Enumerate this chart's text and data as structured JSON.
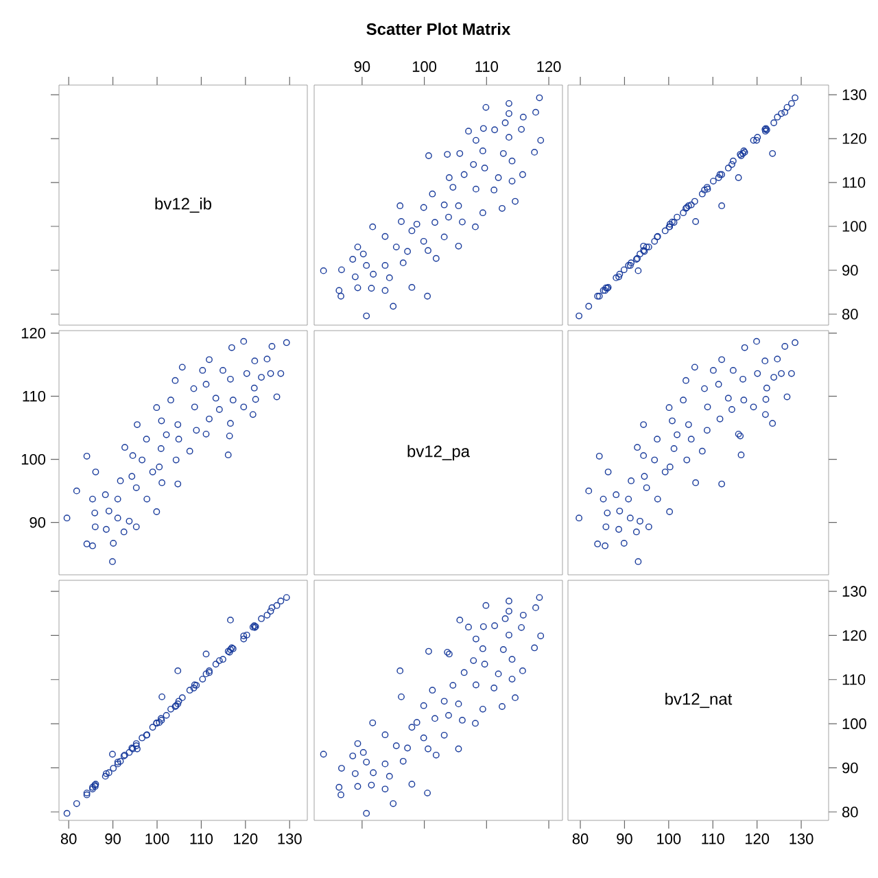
{
  "chart_data": [
    {
      "type": "scatter",
      "annotations": [
        "bv12_ib"
      ],
      "xlim": [
        77.8,
        134
      ],
      "xticks": [
        80,
        90,
        100,
        110,
        120,
        130
      ],
      "ylim": [
        77.5,
        132.2
      ],
      "yticks": [
        80,
        90,
        100,
        110,
        120,
        130
      ],
      "tick_labels": false
    },
    {
      "type": "scatter",
      "title": "Scatter Plot Matrix",
      "color": "#1a3c9c",
      "marker": "circle",
      "xlim": [
        82.3,
        122.2
      ],
      "xticks": [
        90,
        100,
        110,
        120
      ],
      "ylim": [
        77.5,
        132.2
      ],
      "tick_labels": "x",
      "x": [
        118.5,
        113.6,
        109.9,
        113.6,
        117.9,
        115.9,
        113.0,
        109.5,
        107.1,
        111.3,
        115.6,
        118.7,
        113.6,
        108.3,
        100.7,
        103.7,
        105.7,
        109.4,
        112.7,
        117.7,
        107.9,
        114.1,
        109.7,
        104.0,
        106.4,
        111.9,
        115.8,
        114.1,
        101.3,
        104.6,
        108.3,
        111.2,
        114.6,
        96.1,
        99.9,
        103.2,
        105.5,
        109.4,
        112.5,
        91.7,
        96.3,
        98.8,
        101.7,
        103.9,
        106.1,
        108.2,
        93.7,
        98.0,
        99.9,
        103.2,
        105.5,
        89.3,
        90.2,
        95.5,
        97.3,
        100.6,
        88.5,
        90.7,
        93.7,
        96.6,
        101.9,
        83.8,
        86.7,
        88.9,
        91.8,
        94.4,
        86.3,
        89.3,
        91.5,
        93.7,
        98.0,
        100.5,
        95.0,
        90.7,
        86.6
      ],
      "values": [
        129.3,
        128.0,
        127.1,
        125.7,
        126.0,
        124.9,
        123.6,
        122.3,
        121.7,
        122.0,
        122.1,
        119.6,
        120.3,
        119.6,
        116.1,
        116.4,
        116.6,
        117.2,
        116.6,
        116.9,
        114.1,
        114.9,
        113.3,
        111.1,
        111.8,
        111.1,
        111.8,
        110.3,
        107.4,
        108.9,
        108.5,
        108.3,
        105.7,
        104.7,
        104.3,
        104.9,
        104.7,
        103.1,
        104.1,
        99.9,
        101.1,
        100.5,
        100.9,
        102.1,
        101.0,
        99.9,
        97.7,
        99.0,
        96.6,
        97.6,
        95.5,
        95.3,
        93.7,
        95.3,
        94.3,
        94.5,
        92.5,
        91.1,
        91.1,
        91.7,
        92.7,
        89.9,
        90.1,
        88.5,
        89.1,
        88.3,
        85.4,
        86.0,
        85.9,
        85.4,
        86.1,
        84.1,
        81.8,
        79.6,
        84.1
      ]
    },
    {
      "type": "scatter",
      "color": "#1a3c9c",
      "marker": "circle",
      "xlim": [
        77.2,
        136.2
      ],
      "xticks": [
        80,
        90,
        100,
        110,
        120,
        130
      ],
      "ylim": [
        77.5,
        132.2
      ],
      "yticks": [
        80,
        90,
        100,
        110,
        120,
        130
      ],
      "tick_labels": "y",
      "x": [
        128.6,
        127.8,
        126.8,
        125.5,
        126.3,
        124.6,
        123.8,
        122.0,
        121.9,
        122.2,
        121.8,
        119.9,
        120.1,
        119.2,
        116.4,
        116.2,
        123.5,
        117.0,
        116.8,
        117.2,
        114.3,
        114.6,
        113.5,
        115.8,
        111.6,
        111.3,
        112.0,
        110.1,
        107.6,
        108.7,
        108.8,
        108.1,
        105.9,
        112.0,
        104.1,
        105.1,
        104.5,
        103.3,
        103.9,
        100.2,
        106.1,
        100.3,
        101.2,
        101.9,
        100.8,
        100.1,
        97.5,
        99.2,
        96.8,
        97.4,
        94.3,
        95.5,
        93.5,
        95.0,
        94.5,
        94.3,
        92.7,
        91.3,
        90.9,
        91.5,
        92.9,
        93.1,
        89.9,
        88.7,
        88.9,
        88.1,
        85.6,
        85.8,
        86.1,
        85.2,
        86.3,
        84.3,
        81.9,
        79.7,
        83.9
      ],
      "values": [
        129.3,
        128.0,
        127.1,
        125.7,
        126.0,
        124.9,
        123.6,
        122.3,
        121.7,
        122.0,
        122.1,
        119.6,
        120.3,
        119.6,
        116.1,
        116.4,
        116.6,
        117.2,
        116.6,
        116.9,
        114.1,
        114.9,
        113.3,
        111.1,
        111.8,
        111.1,
        111.8,
        110.3,
        107.4,
        108.9,
        108.5,
        108.3,
        105.7,
        104.7,
        104.3,
        104.9,
        104.7,
        103.1,
        104.1,
        99.9,
        101.1,
        100.5,
        100.9,
        102.1,
        101.0,
        99.9,
        97.7,
        99.0,
        96.6,
        97.6,
        95.5,
        95.3,
        93.7,
        95.3,
        94.3,
        94.5,
        92.5,
        91.1,
        91.1,
        91.7,
        92.7,
        89.9,
        90.1,
        88.5,
        89.1,
        88.3,
        85.4,
        86.0,
        85.9,
        85.4,
        86.1,
        84.1,
        81.8,
        79.6,
        84.1
      ]
    },
    {
      "type": "scatter",
      "color": "#1a3c9c",
      "marker": "circle",
      "xlim": [
        77.8,
        134
      ],
      "ylim": [
        81.7,
        120.4
      ],
      "yticks": [
        90,
        100,
        110,
        120
      ],
      "tick_labels": "y",
      "x": [
        129.3,
        128.0,
        127.1,
        125.7,
        126.0,
        124.9,
        123.6,
        122.3,
        121.7,
        122.0,
        122.1,
        119.6,
        120.3,
        119.6,
        116.1,
        116.4,
        116.6,
        117.2,
        116.6,
        116.9,
        114.1,
        114.9,
        113.3,
        111.1,
        111.8,
        111.1,
        111.8,
        110.3,
        107.4,
        108.9,
        108.5,
        108.3,
        105.7,
        104.7,
        104.3,
        104.9,
        104.7,
        103.1,
        104.1,
        99.9,
        101.1,
        100.5,
        100.9,
        102.1,
        101.0,
        99.9,
        97.7,
        99.0,
        96.6,
        97.6,
        95.5,
        95.3,
        93.7,
        95.3,
        94.3,
        94.5,
        92.5,
        91.1,
        91.1,
        91.7,
        92.7,
        89.9,
        90.1,
        88.5,
        89.1,
        88.3,
        85.4,
        86.0,
        85.9,
        85.4,
        86.1,
        84.1,
        81.8,
        79.6,
        84.1
      ],
      "values": [
        118.5,
        113.6,
        109.9,
        113.6,
        117.9,
        115.9,
        113.0,
        109.5,
        107.1,
        111.3,
        115.6,
        118.7,
        113.6,
        108.3,
        100.7,
        103.7,
        105.7,
        109.4,
        112.7,
        117.7,
        107.9,
        114.1,
        109.7,
        104.0,
        106.4,
        111.9,
        115.8,
        114.1,
        101.3,
        104.6,
        108.3,
        111.2,
        114.6,
        96.1,
        99.9,
        103.2,
        105.5,
        109.4,
        112.5,
        91.7,
        96.3,
        98.8,
        101.7,
        103.9,
        106.1,
        108.2,
        93.7,
        98.0,
        99.9,
        103.2,
        105.5,
        89.3,
        90.2,
        95.5,
        97.3,
        100.6,
        88.5,
        90.7,
        93.7,
        96.6,
        101.9,
        83.8,
        86.7,
        88.9,
        91.8,
        94.4,
        86.3,
        89.3,
        91.5,
        93.7,
        98.0,
        100.5,
        95.0,
        90.7,
        86.6
      ]
    },
    {
      "type": "other",
      "annotations": [
        "bv12_pa"
      ]
    },
    {
      "type": "scatter",
      "color": "#1a3c9c",
      "marker": "circle",
      "xlim": [
        77.2,
        136.2
      ],
      "ylim": [
        81.7,
        120.4
      ],
      "yticks": [
        90,
        100,
        110,
        120
      ],
      "tick_labels": false,
      "x": [
        128.6,
        127.8,
        126.8,
        125.5,
        126.3,
        124.6,
        123.8,
        122.0,
        121.9,
        122.2,
        121.8,
        119.9,
        120.1,
        119.2,
        116.4,
        116.2,
        123.5,
        117.0,
        116.8,
        117.2,
        114.3,
        114.6,
        113.5,
        115.8,
        111.6,
        111.3,
        112.0,
        110.1,
        107.6,
        108.7,
        108.8,
        108.1,
        105.9,
        112.0,
        104.1,
        105.1,
        104.5,
        103.3,
        103.9,
        100.2,
        106.1,
        100.3,
        101.2,
        101.9,
        100.8,
        100.1,
        97.5,
        99.2,
        96.8,
        97.4,
        94.3,
        95.5,
        93.5,
        95.0,
        94.5,
        94.3,
        92.7,
        91.3,
        90.9,
        91.5,
        92.9,
        93.1,
        89.9,
        88.7,
        88.9,
        88.1,
        85.6,
        85.8,
        86.1,
        85.2,
        86.3,
        84.3,
        81.9,
        79.7,
        83.9
      ],
      "values": [
        118.5,
        113.6,
        109.9,
        113.6,
        117.9,
        115.9,
        113.0,
        109.5,
        107.1,
        111.3,
        115.6,
        118.7,
        113.6,
        108.3,
        100.7,
        103.7,
        105.7,
        109.4,
        112.7,
        117.7,
        107.9,
        114.1,
        109.7,
        104.0,
        106.4,
        111.9,
        115.8,
        114.1,
        101.3,
        104.6,
        108.3,
        111.2,
        114.6,
        96.1,
        99.9,
        103.2,
        105.5,
        109.4,
        112.5,
        91.7,
        96.3,
        98.8,
        101.7,
        103.9,
        106.1,
        108.2,
        93.7,
        98.0,
        99.9,
        103.2,
        105.5,
        89.3,
        90.2,
        95.5,
        97.3,
        100.6,
        88.5,
        90.7,
        93.7,
        96.6,
        101.9,
        83.8,
        86.7,
        88.9,
        91.8,
        94.4,
        86.3,
        89.3,
        91.5,
        93.7,
        98.0,
        100.5,
        95.0,
        90.7,
        86.6
      ]
    },
    {
      "type": "scatter",
      "color": "#1a3c9c",
      "marker": "circle",
      "xlim": [
        77.8,
        134
      ],
      "xticks": [
        80,
        90,
        100,
        110,
        120,
        130
      ],
      "ylim": [
        78.1,
        132.5
      ],
      "yticks": [
        80,
        90,
        100,
        110,
        120,
        130
      ],
      "tick_labels": "x",
      "x": [
        129.3,
        128.0,
        127.1,
        125.7,
        126.0,
        124.9,
        123.6,
        122.3,
        121.7,
        122.0,
        122.1,
        119.6,
        120.3,
        119.6,
        116.1,
        116.4,
        116.6,
        117.2,
        116.6,
        116.9,
        114.1,
        114.9,
        113.3,
        111.1,
        111.8,
        111.1,
        111.8,
        110.3,
        107.4,
        108.9,
        108.5,
        108.3,
        105.7,
        104.7,
        104.3,
        104.9,
        104.7,
        103.1,
        104.1,
        99.9,
        101.1,
        100.5,
        100.9,
        102.1,
        101.0,
        99.9,
        97.7,
        99.0,
        96.6,
        97.6,
        95.5,
        95.3,
        93.7,
        95.3,
        94.3,
        94.5,
        92.5,
        91.1,
        91.1,
        91.7,
        92.7,
        89.9,
        90.1,
        88.5,
        89.1,
        88.3,
        85.4,
        86.0,
        85.9,
        85.4,
        86.1,
        84.1,
        81.8,
        79.6,
        84.1
      ],
      "values": [
        128.6,
        127.8,
        126.8,
        125.5,
        126.3,
        124.6,
        123.8,
        122.0,
        121.9,
        122.2,
        121.8,
        119.9,
        120.1,
        119.2,
        116.4,
        116.2,
        123.5,
        117.0,
        116.8,
        117.2,
        114.3,
        114.6,
        113.5,
        115.8,
        111.6,
        111.3,
        112.0,
        110.1,
        107.6,
        108.7,
        108.8,
        108.1,
        105.9,
        112.0,
        104.1,
        105.1,
        104.5,
        103.3,
        103.9,
        100.2,
        106.1,
        100.3,
        101.2,
        101.9,
        100.8,
        100.1,
        97.5,
        99.2,
        96.8,
        97.4,
        94.3,
        95.5,
        93.5,
        95.0,
        94.5,
        94.3,
        92.7,
        91.3,
        90.9,
        91.5,
        92.9,
        93.1,
        89.9,
        88.7,
        88.9,
        88.1,
        85.6,
        85.8,
        86.1,
        85.2,
        86.3,
        84.3,
        81.9,
        79.7,
        83.9
      ]
    },
    {
      "type": "scatter",
      "color": "#1a3c9c",
      "marker": "circle",
      "xlim": [
        82.3,
        122.2
      ],
      "xticks": [
        90,
        100,
        110,
        120
      ],
      "ylim": [
        78.1,
        132.5
      ],
      "tick_labels": false,
      "x": [
        118.5,
        113.6,
        109.9,
        113.6,
        117.9,
        115.9,
        113.0,
        109.5,
        107.1,
        111.3,
        115.6,
        118.7,
        113.6,
        108.3,
        100.7,
        103.7,
        105.7,
        109.4,
        112.7,
        117.7,
        107.9,
        114.1,
        109.7,
        104.0,
        106.4,
        111.9,
        115.8,
        114.1,
        101.3,
        104.6,
        108.3,
        111.2,
        114.6,
        96.1,
        99.9,
        103.2,
        105.5,
        109.4,
        112.5,
        91.7,
        96.3,
        98.8,
        101.7,
        103.9,
        106.1,
        108.2,
        93.7,
        98.0,
        99.9,
        103.2,
        105.5,
        89.3,
        90.2,
        95.5,
        97.3,
        100.6,
        88.5,
        90.7,
        93.7,
        96.6,
        101.9,
        83.8,
        86.7,
        88.9,
        91.8,
        94.4,
        86.3,
        89.3,
        91.5,
        93.7,
        98.0,
        100.5,
        95.0,
        90.7,
        86.6
      ],
      "values": [
        128.6,
        127.8,
        126.8,
        125.5,
        126.3,
        124.6,
        123.8,
        122.0,
        121.9,
        122.2,
        121.8,
        119.9,
        120.1,
        119.2,
        116.4,
        116.2,
        123.5,
        117.0,
        116.8,
        117.2,
        114.3,
        114.6,
        113.5,
        115.8,
        111.6,
        111.3,
        112.0,
        110.1,
        107.6,
        108.7,
        108.8,
        108.1,
        105.9,
        112.0,
        104.1,
        105.1,
        104.5,
        103.3,
        103.9,
        100.2,
        106.1,
        100.3,
        101.2,
        101.9,
        100.8,
        100.1,
        97.5,
        99.2,
        96.8,
        97.4,
        94.3,
        95.5,
        93.5,
        95.0,
        94.5,
        94.3,
        92.7,
        91.3,
        90.9,
        91.5,
        92.9,
        93.1,
        89.9,
        88.7,
        88.9,
        88.1,
        85.6,
        85.8,
        86.1,
        85.2,
        86.3,
        84.3,
        81.9,
        79.7,
        83.9
      ]
    },
    {
      "type": "scatter",
      "annotations": [
        "bv12_nat"
      ],
      "xlim": [
        77.2,
        136.2
      ],
      "xticks": [
        80,
        90,
        100,
        110,
        120,
        130
      ],
      "ylim": [
        78.1,
        132.5
      ],
      "yticks": [
        80,
        90,
        100,
        110,
        120,
        130
      ]
    }
  ]
}
